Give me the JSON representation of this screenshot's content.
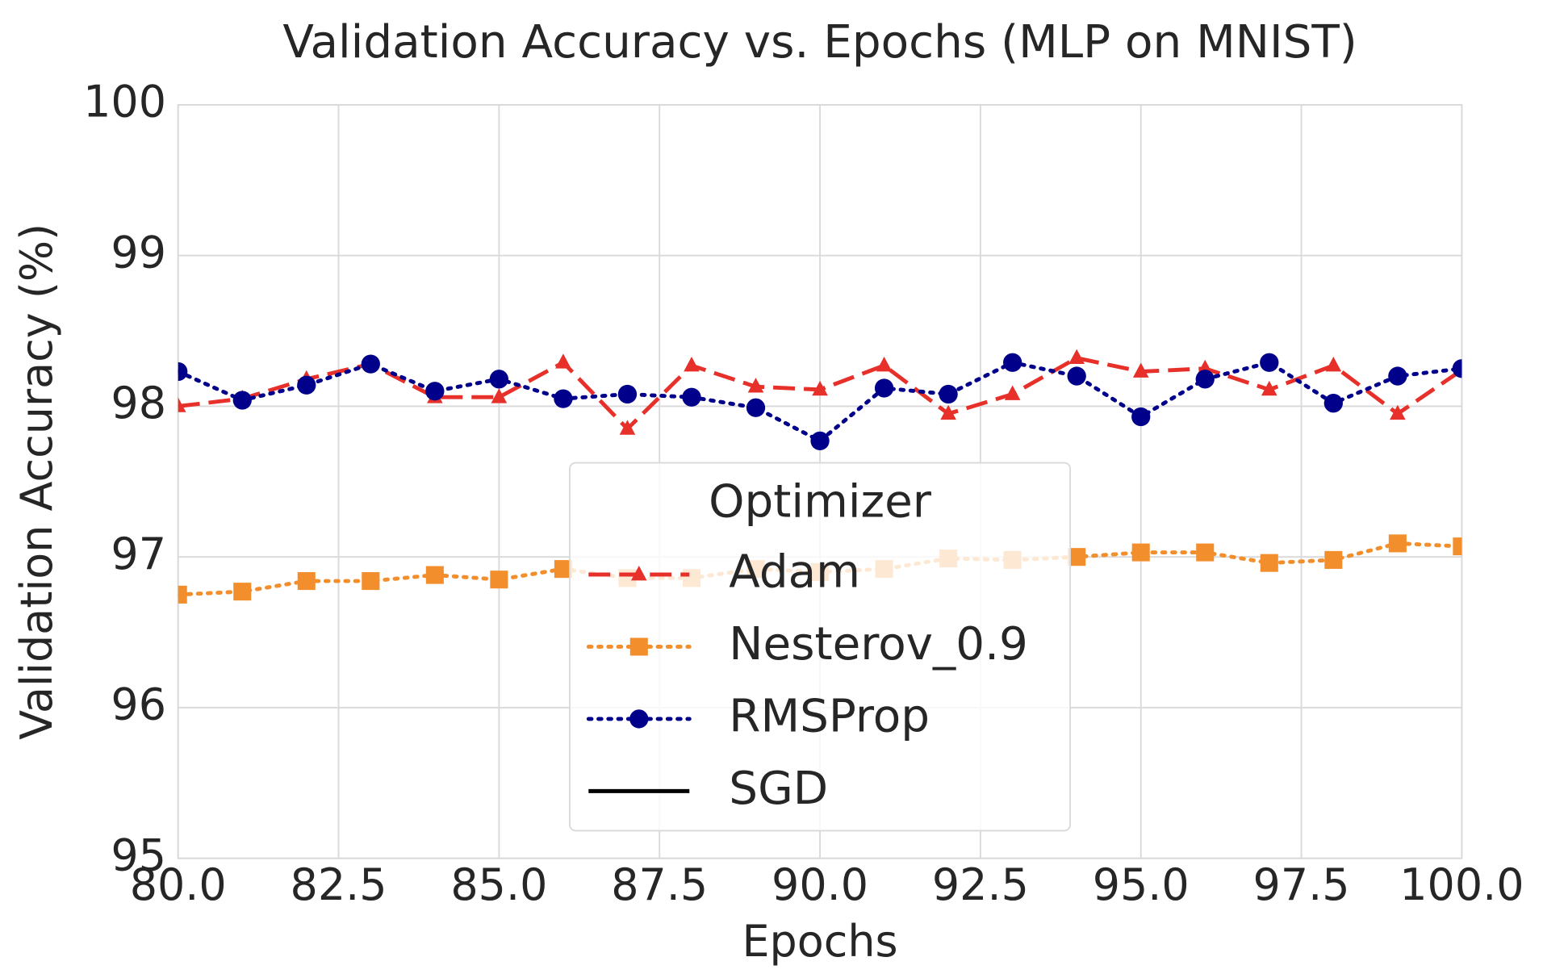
{
  "chart_data": {
    "type": "line",
    "title": "Validation Accuracy vs. Epochs (MLP on MNIST)",
    "xlabel": "Epochs",
    "ylabel": "Validation Accuracy (%)",
    "x": [
      80,
      81,
      82,
      83,
      84,
      85,
      86,
      87,
      88,
      89,
      90,
      91,
      92,
      93,
      94,
      95,
      96,
      97,
      98,
      99,
      100
    ],
    "series": [
      {
        "name": "Adam",
        "color": "#e8302a",
        "linestyle": "dashed",
        "marker": "triangle",
        "values": [
          98.0,
          98.05,
          98.18,
          98.28,
          98.06,
          98.06,
          98.29,
          97.85,
          98.27,
          98.13,
          98.11,
          98.27,
          97.95,
          98.08,
          98.32,
          98.23,
          98.25,
          98.11,
          98.27,
          97.95,
          98.24
        ]
      },
      {
        "name": "Nesterov_0.9",
        "color": "#f28e2b",
        "linestyle": "dotted",
        "marker": "square",
        "values": [
          96.75,
          96.77,
          96.84,
          96.84,
          96.88,
          96.85,
          96.92,
          96.86,
          96.86,
          96.92,
          96.9,
          96.92,
          96.99,
          96.98,
          97.0,
          97.03,
          97.03,
          96.96,
          96.98,
          97.09,
          97.07
        ]
      },
      {
        "name": "RMSProp",
        "color": "#00008b",
        "linestyle": "dotted",
        "marker": "circle",
        "values": [
          98.23,
          98.04,
          98.14,
          98.28,
          98.1,
          98.18,
          98.05,
          98.08,
          98.06,
          97.99,
          97.77,
          98.12,
          98.08,
          98.29,
          98.2,
          97.93,
          98.18,
          98.29,
          98.02,
          98.2,
          98.25
        ]
      },
      {
        "name": "SGD",
        "color": "#000000",
        "linestyle": "solid",
        "marker": "none",
        "values": [
          null,
          null,
          null,
          null,
          null,
          null,
          null,
          null,
          null,
          null,
          null,
          null,
          null,
          null,
          null,
          null,
          null,
          null,
          null,
          null,
          null
        ]
      }
    ],
    "legend": {
      "title": "Optimizer",
      "loc": "lower center"
    },
    "xlim": [
      80,
      100
    ],
    "xticks": [
      {
        "value": 80,
        "label": "80.0"
      },
      82.5,
      {
        "value": 85,
        "label": "85.0"
      },
      87.5,
      {
        "value": 90,
        "label": "90.0"
      },
      92.5,
      {
        "value": 95,
        "label": "95.0"
      },
      97.5,
      {
        "value": 100,
        "label": "100.0"
      }
    ],
    "ylim": [
      95,
      100
    ],
    "yticks": [
      95,
      96,
      97,
      98,
      99,
      100
    ],
    "grid": true
  }
}
